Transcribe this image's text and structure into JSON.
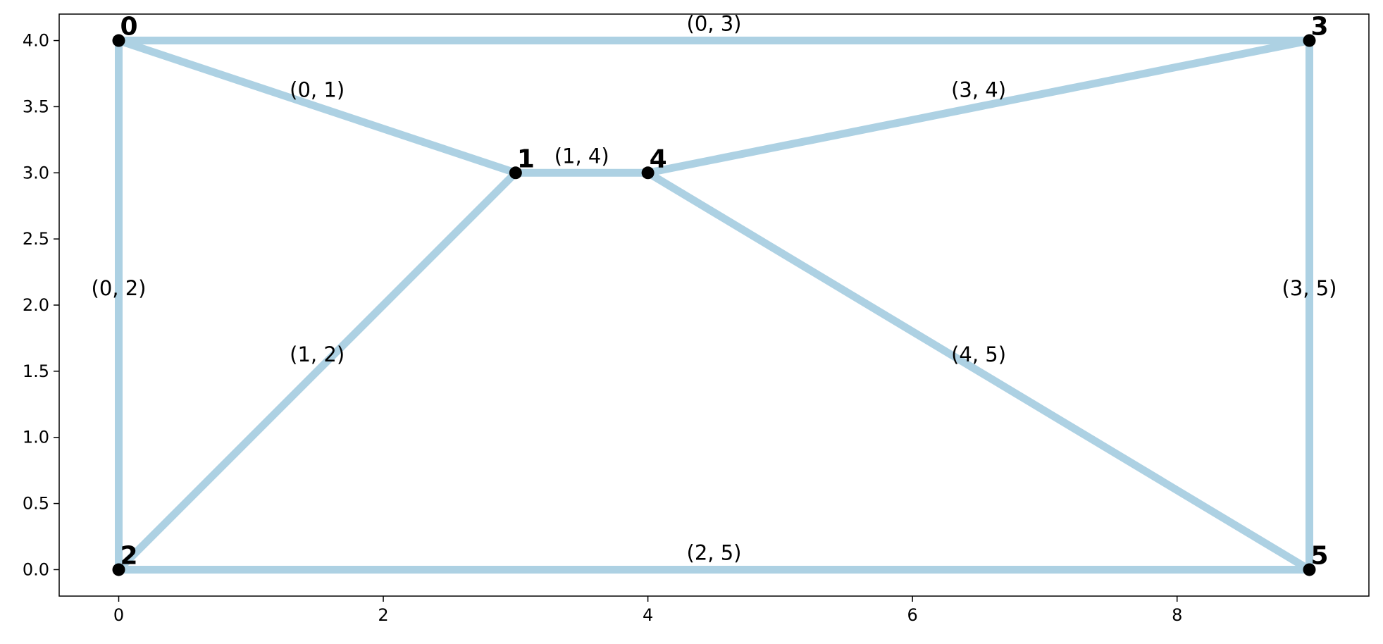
{
  "chart_data": {
    "type": "network-graph",
    "title": "",
    "xlabel": "",
    "ylabel": "",
    "xlim": [
      -0.45,
      9.45
    ],
    "ylim": [
      -0.2,
      4.2
    ],
    "grid": false,
    "x_ticks": [
      {
        "value": 0,
        "label": "0"
      },
      {
        "value": 2,
        "label": "2"
      },
      {
        "value": 4,
        "label": "4"
      },
      {
        "value": 6,
        "label": "6"
      },
      {
        "value": 8,
        "label": "8"
      }
    ],
    "y_ticks": [
      {
        "value": 0.0,
        "label": "0.0"
      },
      {
        "value": 0.5,
        "label": "0.5"
      },
      {
        "value": 1.0,
        "label": "1.0"
      },
      {
        "value": 1.5,
        "label": "1.5"
      },
      {
        "value": 2.0,
        "label": "2.0"
      },
      {
        "value": 2.5,
        "label": "2.5"
      },
      {
        "value": 3.0,
        "label": "3.0"
      },
      {
        "value": 3.5,
        "label": "3.5"
      },
      {
        "value": 4.0,
        "label": "4.0"
      }
    ],
    "edge_color": "#add1e3",
    "node_color": "#000000",
    "nodes": [
      {
        "id": "0",
        "x": 0,
        "y": 4
      },
      {
        "id": "1",
        "x": 3,
        "y": 3
      },
      {
        "id": "2",
        "x": 0,
        "y": 0
      },
      {
        "id": "3",
        "x": 9,
        "y": 4
      },
      {
        "id": "4",
        "x": 4,
        "y": 3
      },
      {
        "id": "5",
        "x": 9,
        "y": 0
      }
    ],
    "edges": [
      {
        "source": "0",
        "target": "1",
        "label": "(0, 1)"
      },
      {
        "source": "0",
        "target": "2",
        "label": "(0, 2)"
      },
      {
        "source": "0",
        "target": "3",
        "label": "(0, 3)"
      },
      {
        "source": "1",
        "target": "2",
        "label": "(1, 2)"
      },
      {
        "source": "1",
        "target": "4",
        "label": "(1, 4)"
      },
      {
        "source": "2",
        "target": "5",
        "label": "(2, 5)"
      },
      {
        "source": "3",
        "target": "4",
        "label": "(3, 4)"
      },
      {
        "source": "3",
        "target": "5",
        "label": "(3, 5)"
      },
      {
        "source": "4",
        "target": "5",
        "label": "(4, 5)"
      }
    ]
  }
}
